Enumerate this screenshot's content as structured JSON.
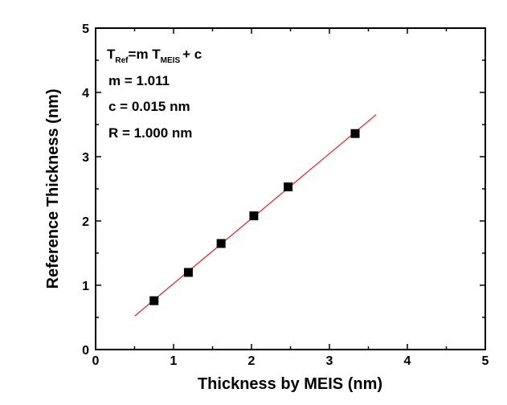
{
  "chart_data": {
    "type": "scatter",
    "xlabel": "Thickness by MEIS (nm)",
    "ylabel": "Reference Thickness (nm)",
    "xlim": [
      0,
      5
    ],
    "ylim": [
      0,
      5
    ],
    "x_ticks": [
      "0",
      "1",
      "2",
      "3",
      "4",
      "5"
    ],
    "y_ticks": [
      "0",
      "1",
      "2",
      "3",
      "4",
      "5"
    ],
    "grid": false,
    "colors": {
      "marker": "#000000",
      "fit_line": "#e03030",
      "axis": "#000000"
    },
    "series": [
      {
        "marker": "square",
        "x": [
          0.75,
          1.19,
          1.61,
          2.03,
          2.47,
          3.33
        ],
        "y": [
          0.76,
          1.2,
          1.65,
          2.08,
          2.53,
          3.36
        ]
      }
    ],
    "fit": {
      "slope": 1.011,
      "intercept": 0.015,
      "x_range": [
        0.5,
        3.6
      ]
    },
    "annotations": {
      "eq_t1": "T",
      "eq_sub1": "Ref",
      "eq_mid": "=m T",
      "eq_sub2": "MEIS",
      "eq_end": "+ c",
      "m_line": "m = 1.011",
      "c_line": "c = 0.015 nm",
      "r_line": "R = 1.000 nm"
    }
  }
}
